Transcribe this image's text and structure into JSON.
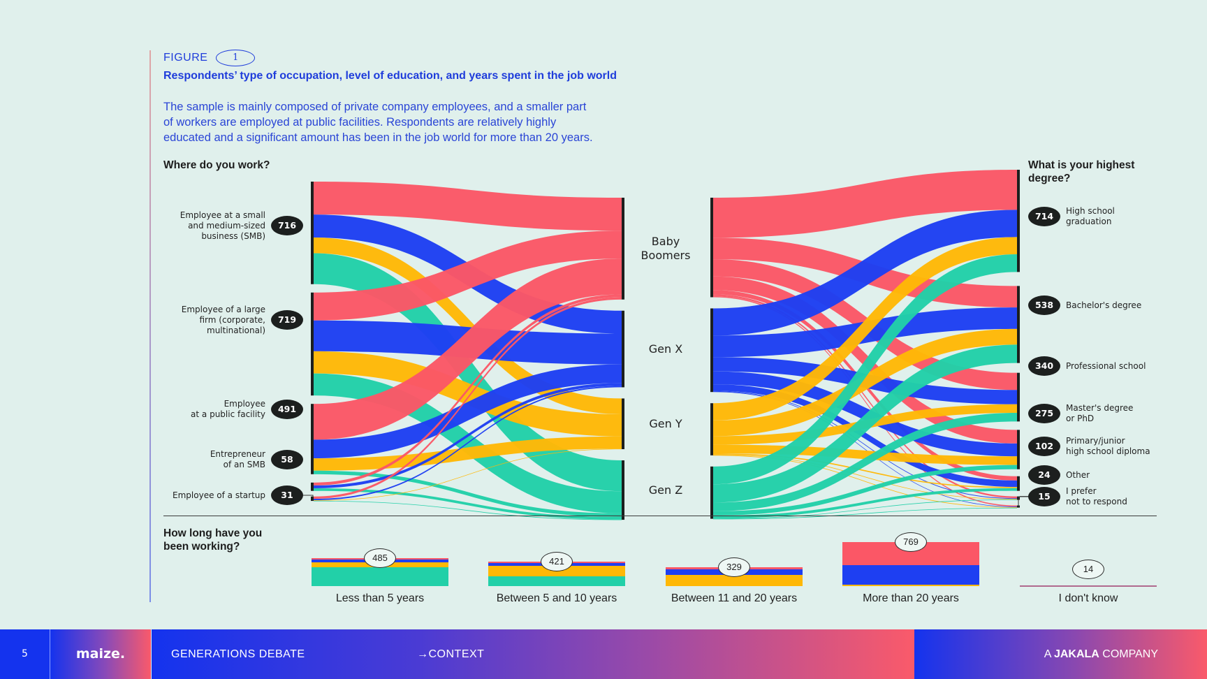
{
  "header": {
    "figure_label": "FIGURE",
    "figure_number": "1",
    "title": "Respondents’ type of occupation, level of education, and years spent in the job world",
    "body_lines": [
      "The sample is mainly composed of private company employees, and a smaller part",
      "of workers are employed at public facilities. Respondents are relatively highly",
      "educated and a significant amount has been in the job world for more than 20 years."
    ]
  },
  "colors": {
    "baby_boomers": "#fb5766",
    "gen_x": "#1e3ff2",
    "gen_y": "#ffb806",
    "gen_z": "#22d0a8",
    "badge": "#1c1f1e",
    "accent_text": "#1f3ddb"
  },
  "chart_data": [
    {
      "type": "sankey",
      "title": "Where do you work?",
      "sources": [
        {
          "label": "Employee at a small and medium-sized business (SMB)",
          "lines": [
            "Employee at a small",
            "and medium-sized",
            "business (SMB)"
          ],
          "value": 716
        },
        {
          "label": "Employee of a large firm (corporate, multinational)",
          "lines": [
            "Employee of a large",
            "firm (corporate,",
            "multinational)"
          ],
          "value": 719
        },
        {
          "label": "Employee at a public facility",
          "lines": [
            "Employee",
            "at a public facility"
          ],
          "value": 491
        },
        {
          "label": "Entrepreneur of an SMB",
          "lines": [
            "Entrepreneur",
            "of an SMB"
          ],
          "value": 58
        },
        {
          "label": "Employee of a startup",
          "lines": [
            "Employee of a startup"
          ],
          "value": 31
        }
      ],
      "targets": [
        {
          "label": "Baby Boomers",
          "lines": [
            "Baby",
            "Boomers"
          ]
        },
        {
          "label": "Gen X",
          "lines": [
            "Gen X"
          ]
        },
        {
          "label": "Gen Y",
          "lines": [
            "Gen Y"
          ]
        },
        {
          "label": "Gen Z",
          "lines": [
            "Gen Z"
          ]
        }
      ],
      "flows": [
        [
          230,
          160,
          110,
          216
        ],
        [
          195,
          215,
          155,
          154
        ],
        [
          250,
          130,
          86,
          25
        ],
        [
          20,
          20,
          0,
          18
        ],
        [
          16,
          10,
          3,
          2
        ]
      ]
    },
    {
      "type": "sankey",
      "title": "What is your highest degree?",
      "sources": [
        {
          "label": "Baby Boomers"
        },
        {
          "label": "Gen X"
        },
        {
          "label": "Gen Y"
        },
        {
          "label": "Gen Z"
        }
      ],
      "targets": [
        {
          "label": "High school graduation",
          "lines": [
            "High school",
            "graduation"
          ],
          "value": 714
        },
        {
          "label": "Bachelor's degree",
          "lines": [
            "Bachelor's degree"
          ],
          "value": 538
        },
        {
          "label": "Professional school",
          "lines": [
            "Professional school"
          ],
          "value": 340
        },
        {
          "label": "Master's degree or PhD",
          "lines": [
            "Master's degree",
            "or PhD"
          ],
          "value": 275
        },
        {
          "label": "Primary/junior high school diploma",
          "lines": [
            "Primary/junior",
            "high school diploma"
          ],
          "value": 102
        },
        {
          "label": "Other",
          "lines": [
            "Other"
          ],
          "value": 24
        },
        {
          "label": "I prefer not to respond",
          "lines": [
            "I prefer",
            "not to respond"
          ],
          "value": 15
        }
      ],
      "flows": [
        [
          280,
          150,
          120,
          95,
          30,
          12,
          8
        ],
        [
          190,
          150,
          100,
          90,
          45,
          5,
          4
        ],
        [
          120,
          110,
          60,
          60,
          8,
          4,
          2
        ],
        [
          124,
          128,
          60,
          30,
          19,
          3,
          1
        ]
      ]
    },
    {
      "type": "bar",
      "stacked": true,
      "title": "How long have you been working?",
      "title_lines": [
        "How long have you",
        "been working?"
      ],
      "categories": [
        "Less than 5 years",
        "Between 5 and 10 years",
        "Between 11 and 20 years",
        "More than 20 years",
        "I don't know"
      ],
      "totals": [
        485,
        421,
        329,
        769,
        14
      ],
      "series": [
        {
          "name": "Gen Z",
          "values": [
            330,
            170,
            0,
            0,
            2
          ]
        },
        {
          "name": "Gen Y",
          "values": [
            85,
            180,
            200,
            20,
            4
          ]
        },
        {
          "name": "Gen X",
          "values": [
            45,
            50,
            95,
            350,
            4
          ]
        },
        {
          "name": "Baby Boomers",
          "values": [
            25,
            21,
            34,
            399,
            4
          ]
        }
      ]
    }
  ],
  "footer": {
    "page_number": "5",
    "logo": "maize.",
    "section": "GENERATIONS DEBATE",
    "arrow": "→",
    "subsection": "CONTEXT",
    "company_prefix": "A",
    "company_name": "JAKALA",
    "company_suffix": "COMPANY"
  }
}
